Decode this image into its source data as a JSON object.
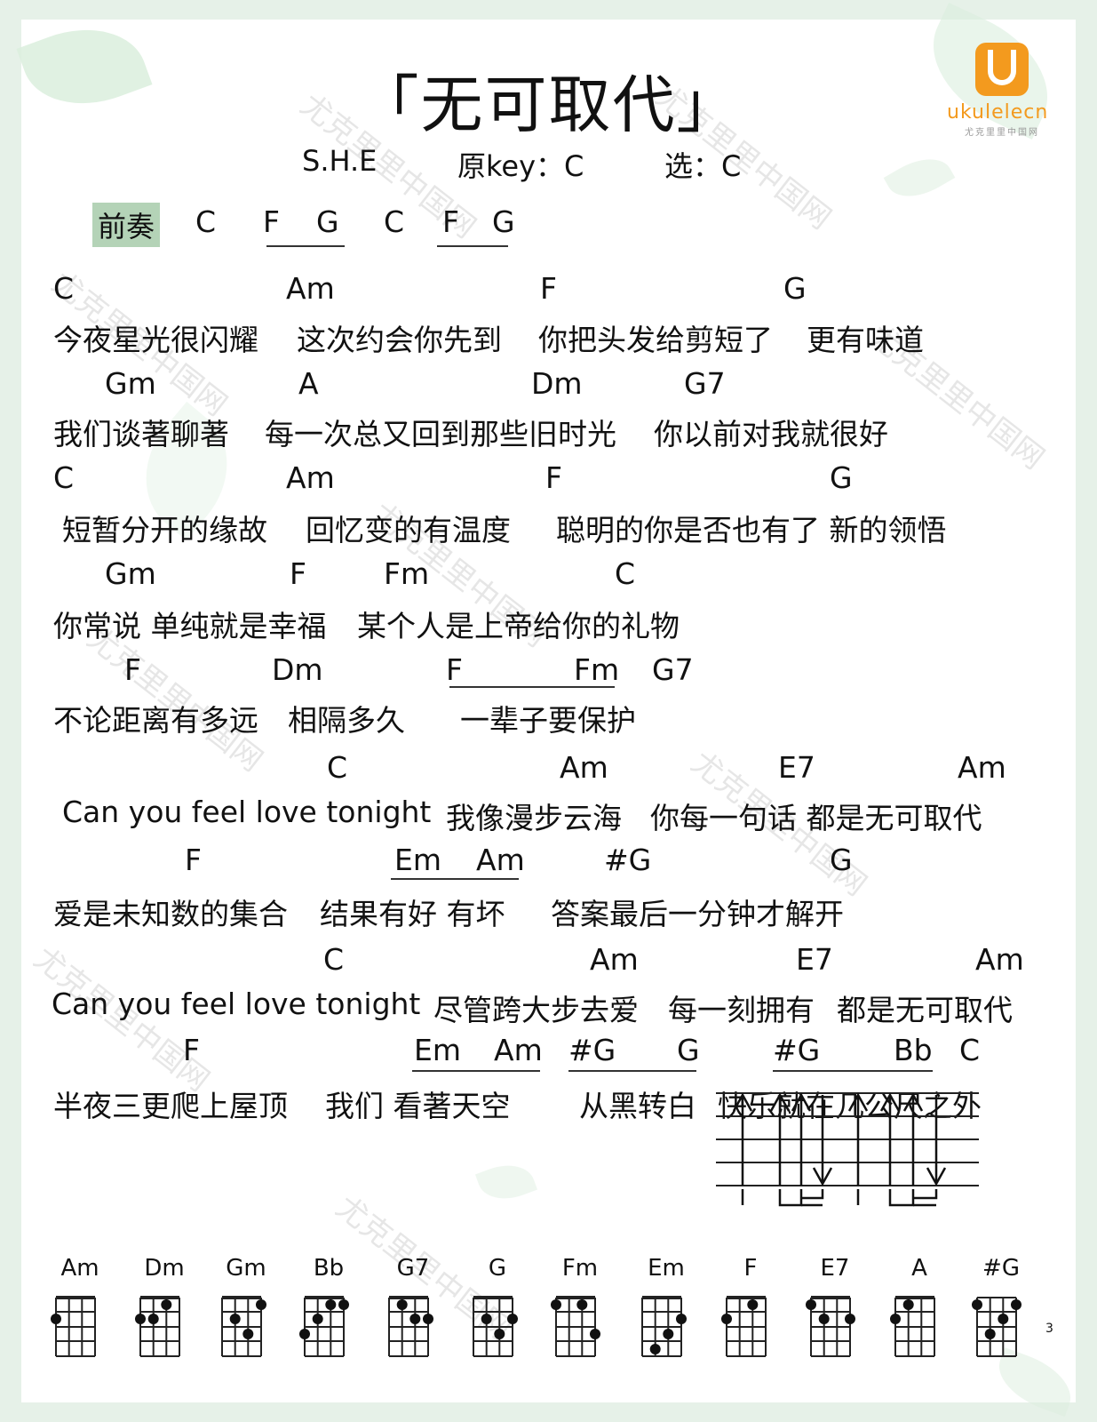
{
  "title": "「无可取代」",
  "artist": "S.H.E",
  "original_key": "原key：C",
  "selected_key": "选：C",
  "logo": {
    "brand": "ukulelecn",
    "sub": "尤克里里中国网"
  },
  "watermark": "尤克里里中国网",
  "intro": {
    "label": "前奏",
    "chords": [
      "C",
      "F",
      "G",
      "C",
      "F",
      "G"
    ]
  },
  "lines": [
    {
      "chords": [
        "C",
        "Am",
        "F",
        "G"
      ],
      "lyric": [
        "今夜星光很闪耀",
        "这次约会你先到",
        "你把头发给剪短了",
        "更有味道"
      ]
    },
    {
      "chords": [
        "Gm",
        "A",
        "Dm",
        "G7"
      ],
      "lyric": [
        "我们谈著聊著",
        "每一次总又回到那些旧时光",
        "你以前对我就很好"
      ]
    },
    {
      "chords": [
        "C",
        "Am",
        "F",
        "G"
      ],
      "lyric": [
        "短暂分开的缘故",
        "回忆变的有温度",
        "聪明的你是否也有了 新的领悟"
      ]
    },
    {
      "chords": [
        "Gm",
        "F",
        "Fm",
        "C"
      ],
      "lyric": [
        "你常说 单纯就是幸福",
        "某个人是上帝给你的礼物"
      ]
    },
    {
      "chords": [
        "F",
        "Dm",
        "F",
        "Fm",
        "G7"
      ],
      "lyric": [
        "不论距离有多远",
        "相隔多久",
        "一辈子要保护"
      ]
    },
    {
      "chords": [
        "C",
        "Am",
        "E7",
        "Am"
      ],
      "lyric": [
        "Can you  feel love tonight",
        "我像漫步云海",
        "你每一句话 都是无可取代"
      ]
    },
    {
      "chords": [
        "F",
        "Em",
        "Am",
        "#G",
        "G"
      ],
      "lyric": [
        "爱是未知数的集合",
        "结果有好 有坏",
        "答案最后一分钟才解开"
      ]
    },
    {
      "chords": [
        "C",
        "Am",
        "E7",
        "Am"
      ],
      "lyric": [
        "Can  you feel love tonight",
        "尽管跨大步去爱",
        "每一刻拥有",
        "都是无可取代"
      ]
    },
    {
      "chords": [
        "F",
        "Em",
        "Am",
        "#G",
        "G",
        "#G",
        "Bb",
        "C"
      ],
      "lyric": [
        "半夜三更爬上屋顶",
        "我们 看著天空",
        "从黑转白",
        "快乐就在几公尺之外"
      ]
    }
  ],
  "chord_diagrams": [
    "Am",
    "Dm",
    "Gm",
    "Bb",
    "G7",
    "G",
    "Fm",
    "Em",
    "F",
    "E7",
    "A",
    "#G"
  ],
  "diagram_fret_note": "3"
}
